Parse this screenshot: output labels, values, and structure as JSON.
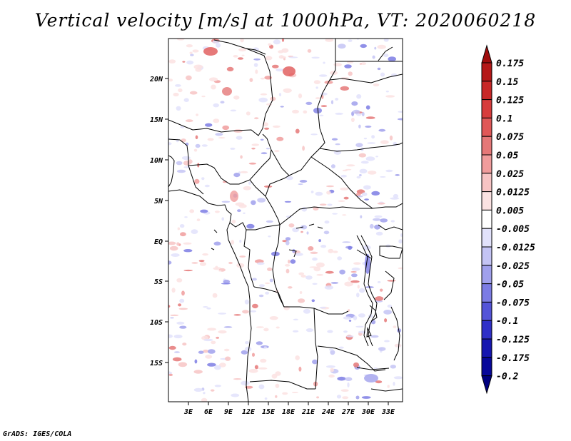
{
  "title": "Vertical velocity [m/s] at 1000hPa, VT: 2020060218",
  "footer": "GrADS: IGES/COLA",
  "map": {
    "lat_ticks": [
      "20N",
      "15N",
      "10N",
      "5N",
      "EQ",
      "5S",
      "10S",
      "15S"
    ],
    "lon_ticks": [
      "3E",
      "6E",
      "9E",
      "12E",
      "15E",
      "18E",
      "21E",
      "24E",
      "27E",
      "30E",
      "33E"
    ]
  },
  "colorbar": {
    "labels": [
      "0.175",
      "0.15",
      "0.125",
      "0.1",
      "0.075",
      "0.05",
      "0.025",
      "0.0125",
      "0.005",
      "-0.005",
      "-0.0125",
      "-0.025",
      "-0.05",
      "-0.075",
      "-0.1",
      "-0.125",
      "-0.175",
      "-0.2"
    ],
    "colors": [
      "#a00d0d",
      "#b51818",
      "#c82828",
      "#d73c3c",
      "#e05858",
      "#e57878",
      "#f09c9c",
      "#f7c4c4",
      "#fbe2e2",
      "#ffffff",
      "#e2e2fb",
      "#c4c4f4",
      "#a0a0ec",
      "#7c7ce4",
      "#5454d8",
      "#3030c8",
      "#1616b0",
      "#08089a",
      "#000080"
    ]
  }
}
